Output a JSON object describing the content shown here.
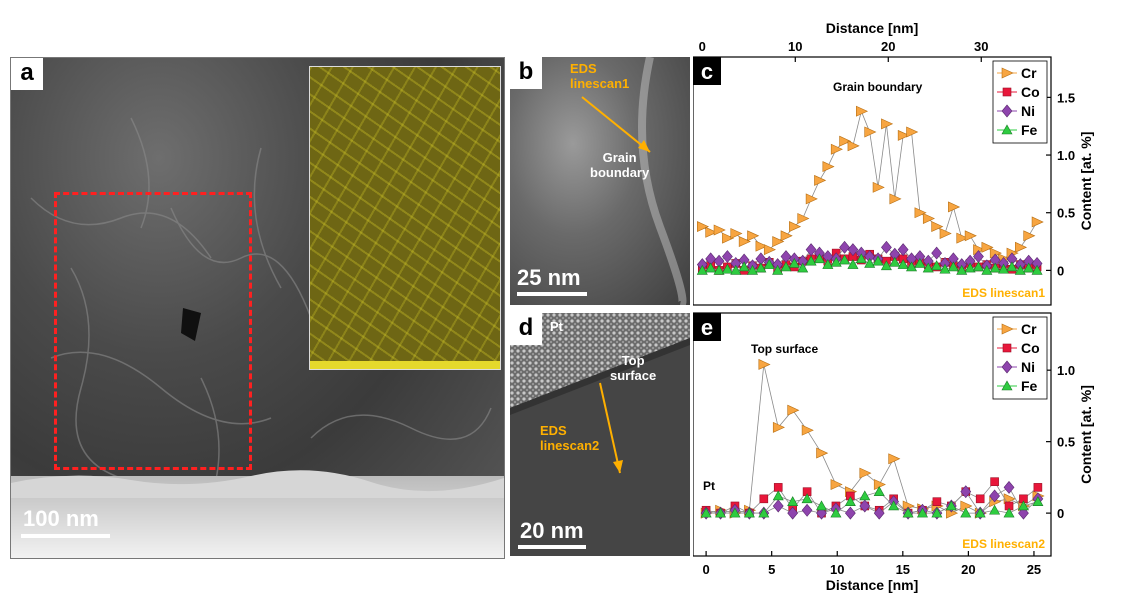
{
  "panels": {
    "a": {
      "label": "a",
      "scale_bar": "100 nm"
    },
    "b": {
      "label": "b",
      "scale_bar": "25 nm",
      "annotation_line1": "EDS",
      "annotation_line2": "linescan1",
      "feature_line1": "Grain",
      "feature_line2": "boundary"
    },
    "c": {
      "label": "c"
    },
    "d": {
      "label": "d",
      "scale_bar": "20 nm",
      "top_label": "Pt",
      "annotation_line1": "EDS",
      "annotation_line2": "linescan2",
      "feature_line1": "Top",
      "feature_line2": "surface"
    },
    "e": {
      "label": "e"
    }
  },
  "colors": {
    "Cr": "#F7A541",
    "Co": "#E8173A",
    "Ni": "#8E44AD",
    "Fe": "#2ECC40",
    "eds_label": "#FFB000",
    "roi_box": "#FF2020",
    "eds_map": "#9C8E1A"
  },
  "chart_data": [
    {
      "type": "line",
      "panel": "c",
      "annotation": "Grain boundary",
      "corner_label": "EDS linescan1",
      "xlabel": "Distance [nm]",
      "xaxis_position": "top",
      "ylabel": "Content [at. %]",
      "xlim": [
        -1,
        37.5
      ],
      "ylim": [
        -0.3,
        1.85
      ],
      "xticks": [
        "0",
        "10",
        "20",
        "30"
      ],
      "yticks": [
        "0",
        "0.5",
        "1.0",
        "1.5"
      ],
      "legend_position": "top-right",
      "x": [
        0,
        0.9,
        1.8,
        2.7,
        3.6,
        4.5,
        5.4,
        6.3,
        7.2,
        8.1,
        9.0,
        9.9,
        10.8,
        11.7,
        12.6,
        13.5,
        14.4,
        15.3,
        16.2,
        17.1,
        18.0,
        18.9,
        19.8,
        20.7,
        21.6,
        22.5,
        23.4,
        24.3,
        25.2,
        26.1,
        27.0,
        27.9,
        28.8,
        29.7,
        30.6,
        31.5,
        32.4,
        33.3,
        34.2,
        35.1,
        36.0
      ],
      "series": [
        {
          "name": "Cr",
          "marker": "triangle-right",
          "values": [
            0.38,
            0.33,
            0.35,
            0.28,
            0.32,
            0.25,
            0.3,
            0.21,
            0.18,
            0.25,
            0.3,
            0.38,
            0.45,
            0.62,
            0.78,
            0.9,
            1.05,
            1.12,
            1.08,
            1.38,
            1.2,
            0.72,
            1.27,
            0.62,
            1.17,
            1.2,
            0.5,
            0.45,
            0.38,
            0.32,
            0.55,
            0.28,
            0.3,
            0.18,
            0.2,
            0.15,
            0.1,
            0.15,
            0.2,
            0.3,
            0.42
          ]
        },
        {
          "name": "Co",
          "marker": "square",
          "values": [
            0.02,
            0.05,
            0.0,
            0.03,
            0.06,
            0.0,
            0.04,
            0.02,
            0.07,
            0.01,
            0.05,
            0.03,
            0.08,
            0.1,
            0.12,
            0.08,
            0.15,
            0.1,
            0.12,
            0.09,
            0.14,
            0.1,
            0.08,
            0.12,
            0.1,
            0.06,
            0.08,
            0.05,
            0.03,
            0.07,
            0.04,
            0.02,
            0.06,
            0.03,
            0.05,
            0.02,
            0.04,
            0.01,
            0.05,
            0.02,
            0.03
          ]
        },
        {
          "name": "Ni",
          "marker": "diamond",
          "values": [
            0.05,
            0.1,
            0.08,
            0.12,
            0.06,
            0.09,
            0.04,
            0.1,
            0.07,
            0.05,
            0.12,
            0.1,
            0.08,
            0.18,
            0.15,
            0.12,
            0.1,
            0.2,
            0.18,
            0.15,
            0.12,
            0.1,
            0.2,
            0.14,
            0.18,
            0.1,
            0.12,
            0.08,
            0.15,
            0.06,
            0.1,
            0.05,
            0.08,
            0.12,
            0.04,
            0.09,
            0.06,
            0.1,
            0.05,
            0.08,
            0.06
          ]
        },
        {
          "name": "Fe",
          "marker": "triangle-up",
          "values": [
            0.0,
            0.02,
            0.0,
            0.01,
            0.0,
            0.03,
            0.0,
            0.02,
            0.05,
            0.0,
            0.03,
            0.06,
            0.02,
            0.08,
            0.1,
            0.05,
            0.07,
            0.09,
            0.05,
            0.1,
            0.06,
            0.08,
            0.04,
            0.07,
            0.05,
            0.03,
            0.06,
            0.02,
            0.04,
            0.01,
            0.03,
            0.0,
            0.02,
            0.03,
            0.0,
            0.02,
            0.01,
            0.03,
            0.0,
            0.02,
            0.0
          ]
        }
      ]
    },
    {
      "type": "line",
      "panel": "e",
      "annotation": "Top surface",
      "left_annotation": "Pt",
      "corner_label": "EDS linescan2",
      "xlabel": "Distance [nm]",
      "xaxis_position": "bottom",
      "ylabel": "Content [at. %]",
      "xlim": [
        -1,
        26.3
      ],
      "ylim": [
        -0.3,
        1.4
      ],
      "xticks": [
        "0",
        "5",
        "10",
        "15",
        "20",
        "25"
      ],
      "yticks": [
        "0",
        "0.5",
        "1.0"
      ],
      "legend_position": "top-right",
      "x": [
        0,
        1.1,
        2.2,
        3.3,
        4.4,
        5.5,
        6.6,
        7.7,
        8.8,
        9.9,
        11.0,
        12.1,
        13.2,
        14.3,
        15.4,
        16.5,
        17.6,
        18.7,
        19.8,
        20.9,
        22.0,
        23.1,
        24.2,
        25.3
      ],
      "series": [
        {
          "name": "Cr",
          "marker": "triangle-right",
          "values": [
            0.0,
            0.02,
            0.0,
            0.02,
            1.04,
            0.6,
            0.72,
            0.58,
            0.42,
            0.2,
            0.15,
            0.28,
            0.2,
            0.38,
            0.05,
            0.03,
            0.05,
            0.0,
            0.05,
            0.0,
            0.08,
            0.1,
            0.05,
            0.12
          ]
        },
        {
          "name": "Co",
          "marker": "square",
          "values": [
            0.02,
            0.0,
            0.05,
            0.0,
            0.1,
            0.18,
            0.03,
            0.15,
            0.0,
            0.05,
            0.12,
            0.05,
            0.02,
            0.1,
            0.0,
            0.02,
            0.08,
            0.05,
            0.15,
            0.1,
            0.22,
            0.05,
            0.1,
            0.18
          ]
        },
        {
          "name": "Ni",
          "marker": "diamond",
          "values": [
            0.0,
            0.0,
            0.02,
            0.0,
            0.0,
            0.05,
            0.0,
            0.02,
            0.0,
            0.03,
            0.0,
            0.05,
            0.0,
            0.08,
            0.0,
            0.02,
            0.0,
            0.05,
            0.15,
            0.0,
            0.12,
            0.18,
            0.0,
            0.1
          ]
        },
        {
          "name": "Fe",
          "marker": "triangle-up",
          "values": [
            0.0,
            0.0,
            0.0,
            0.0,
            0.0,
            0.12,
            0.08,
            0.1,
            0.05,
            0.0,
            0.08,
            0.12,
            0.15,
            0.05,
            0.0,
            0.0,
            0.0,
            0.05,
            0.0,
            0.0,
            0.02,
            0.0,
            0.05,
            0.08
          ]
        }
      ]
    }
  ]
}
